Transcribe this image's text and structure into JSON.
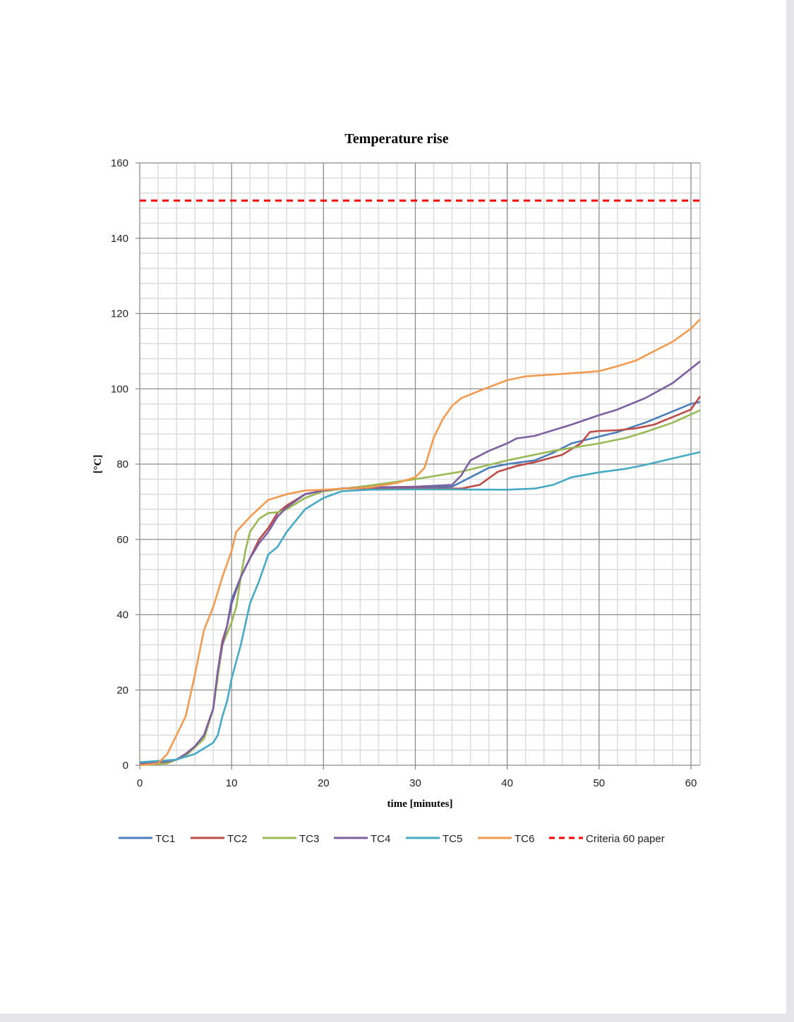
{
  "chart_data": {
    "type": "line",
    "title": "Temperature rise",
    "xlabel": "time [minutes]",
    "ylabel": "[°C]",
    "xlim": [
      0,
      61
    ],
    "ylim": [
      0,
      160
    ],
    "xticks": [
      0,
      10,
      20,
      30,
      40,
      50,
      60
    ],
    "yticks": [
      0,
      20,
      40,
      60,
      80,
      100,
      120,
      140,
      160
    ],
    "grid": true,
    "legend": "bottom",
    "series": [
      {
        "name": "TC1",
        "color": "#4a7ebb",
        "dashed": false,
        "x": [
          0,
          3,
          4,
          5,
          6,
          7,
          8,
          8.5,
          9,
          9.5,
          10,
          11,
          12,
          13,
          14,
          15,
          16,
          18,
          20,
          22,
          25,
          30,
          34,
          36,
          38,
          40,
          43,
          45,
          47,
          50,
          52,
          55,
          58,
          60,
          61
        ],
        "y": [
          0.5,
          1,
          1.5,
          3,
          5,
          8,
          15,
          25,
          33,
          37,
          44,
          50,
          55,
          60,
          63,
          67,
          69,
          72,
          73,
          73.5,
          73.8,
          73.8,
          74,
          76.5,
          79,
          80,
          81,
          83,
          85.5,
          87.3,
          88.5,
          91,
          94,
          96,
          96.5
        ]
      },
      {
        "name": "TC2",
        "color": "#be4b48",
        "dashed": false,
        "x": [
          0,
          3,
          4,
          5,
          6,
          7,
          8,
          8.5,
          9,
          9.5,
          10,
          11,
          12,
          13,
          14,
          15,
          16,
          18,
          20,
          22,
          25,
          30,
          35,
          37,
          39,
          41,
          43,
          46,
          48,
          49,
          50,
          52,
          54,
          56,
          58,
          60,
          61
        ],
        "y": [
          0.3,
          1,
          1.5,
          3,
          5,
          8,
          15,
          25,
          33,
          37,
          43,
          50,
          55,
          60,
          63,
          67,
          69,
          72,
          73,
          73.5,
          73.6,
          73.5,
          73.5,
          74.5,
          78,
          79.5,
          80.5,
          82.5,
          85.5,
          88.5,
          88.8,
          89,
          89.5,
          90.5,
          92.5,
          94.5,
          98
        ]
      },
      {
        "name": "TC3",
        "color": "#98b954",
        "dashed": false,
        "x": [
          0,
          3,
          5,
          7,
          8,
          9,
          10,
          10.5,
          11,
          11.5,
          12,
          13,
          14,
          15,
          16,
          18,
          20,
          25,
          30,
          35,
          40,
          45,
          50,
          53,
          55,
          58,
          61
        ],
        "y": [
          0,
          0.5,
          2.5,
          7,
          15,
          32,
          38,
          42,
          50,
          57,
          62,
          65.5,
          67,
          67.2,
          68,
          71,
          72.8,
          74.3,
          76,
          78,
          81,
          83.5,
          85.5,
          87,
          88.5,
          91,
          94.3
        ]
      },
      {
        "name": "TC4",
        "color": "#7d60a0",
        "dashed": false,
        "x": [
          0,
          3,
          4,
          5,
          6,
          7,
          8,
          8.5,
          9,
          9.5,
          10,
          11,
          12,
          13,
          14,
          15,
          16,
          18,
          20,
          22,
          25,
          30,
          34,
          35,
          36,
          38,
          40,
          41,
          43,
          45,
          47,
          50,
          52,
          55,
          58,
          61
        ],
        "y": [
          0.4,
          1,
          1.5,
          3,
          5,
          8,
          15,
          25,
          32,
          37,
          43,
          50,
          55,
          59,
          62,
          66,
          68.5,
          72,
          73,
          73.5,
          73.8,
          74,
          74.5,
          77,
          81,
          83.5,
          85.5,
          86.8,
          87.5,
          89,
          90.5,
          93,
          94.5,
          97.5,
          101.5,
          107.3
        ]
      },
      {
        "name": "TC5",
        "color": "#46aac5",
        "dashed": false,
        "x": [
          0,
          4,
          6,
          8,
          8.5,
          9,
          9.5,
          10,
          11,
          12,
          13,
          14,
          15,
          16,
          17,
          18,
          20,
          22,
          25,
          30,
          40,
          43,
          45,
          47,
          50,
          53,
          55,
          58,
          61
        ],
        "y": [
          0.8,
          1.5,
          3,
          6,
          8,
          13,
          17,
          23,
          32,
          43,
          49,
          56,
          58,
          62,
          65,
          68,
          71,
          72.8,
          73.2,
          73.3,
          73.2,
          73.5,
          74.5,
          76.5,
          77.8,
          78.8,
          79.8,
          81.5,
          83.2
        ]
      },
      {
        "name": "TC6",
        "color": "#f39a4f",
        "dashed": false,
        "x": [
          0,
          2,
          3,
          4,
          5,
          6,
          7,
          8,
          9,
          10,
          10.5,
          12,
          14,
          16,
          18,
          20,
          25,
          28,
          30,
          31,
          32,
          33,
          34,
          35,
          37,
          40,
          42,
          45,
          48,
          50,
          52,
          54,
          56,
          58,
          60,
          61
        ],
        "y": [
          0,
          0.5,
          3,
          8,
          13,
          24,
          36,
          42,
          50,
          57,
          62,
          66,
          70.5,
          72,
          73,
          73.2,
          73.8,
          75,
          76.5,
          79,
          87,
          92,
          95.5,
          97.5,
          99.5,
          102.3,
          103.3,
          103.8,
          104.3,
          104.7,
          106,
          107.5,
          110,
          112.5,
          116,
          118.5
        ]
      },
      {
        "name": "Criteria 60 paper",
        "color": "#ff0000",
        "dashed": true,
        "x": [
          0,
          61
        ],
        "y": [
          150,
          150
        ]
      }
    ]
  }
}
